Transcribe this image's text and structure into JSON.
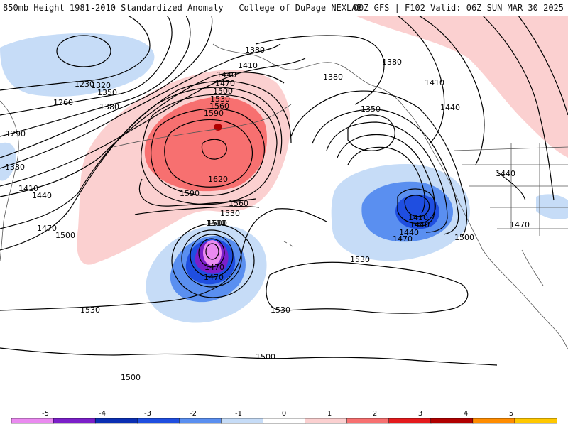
{
  "header": {
    "left_title": "850mb Height 1981-2010 Standardized Anomaly | College of DuPage NEXLAB",
    "right_title": "00Z GFS | F102 Valid: 06Z SUN MAR 30 2025"
  },
  "map": {
    "contour_labels": [
      "1230",
      "1260",
      "1290",
      "1320",
      "1350",
      "1380",
      "1380",
      "1380",
      "1410",
      "1410",
      "1410",
      "1440",
      "1440",
      "1440",
      "1440",
      "1470",
      "1470",
      "1470",
      "1470",
      "1470",
      "1500",
      "1500",
      "1500",
      "1500",
      "1500",
      "1500",
      "1530",
      "1530",
      "1530",
      "1530",
      "1530",
      "1560",
      "1560",
      "1590",
      "1590",
      "1620",
      "1350",
      "1380",
      "1380",
      "1410",
      "1440",
      "1440",
      "1470",
      "1500"
    ],
    "colors": {
      "pos1": "#fbd0d0",
      "pos2": "#f77070",
      "pos3": "#e41a1c",
      "pos4": "#b00000",
      "neg1": "#c6dcf7",
      "neg2": "#5a8ff0",
      "neg3": "#1f4ee0",
      "neg4": "#7b1fc9",
      "neg5": "#ea8af0"
    }
  },
  "colorbar": {
    "ticks": [
      "-5",
      "-4",
      "-3",
      "-2",
      "-1",
      "0",
      "1",
      "2",
      "3",
      "4",
      "5"
    ],
    "colors": [
      "#ea8af0",
      "#7b1fc9",
      "#0a2fb3",
      "#1f4ee0",
      "#5a8ff0",
      "#c6dcf7",
      "#ffffff",
      "#fbd0d0",
      "#f77070",
      "#e41a1c",
      "#b00000",
      "#ff8c00",
      "#ffc800"
    ]
  }
}
